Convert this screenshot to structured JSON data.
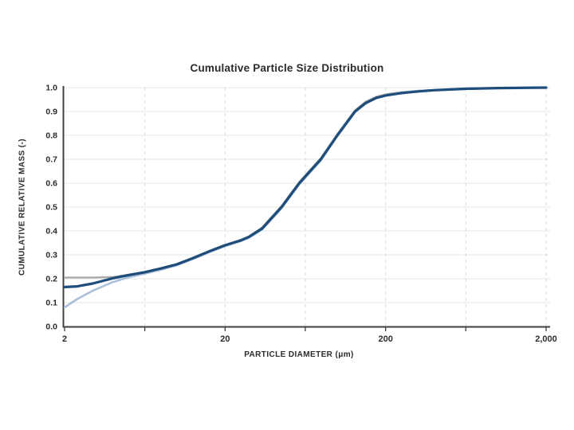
{
  "chart_data": {
    "type": "line",
    "title": "Cumulative Particle Size Distribution",
    "xlabel": "PARTICLE DIAMETER (μm)",
    "ylabel": "CUMULATIVE RELATIVE MASS (-)",
    "x_scale": "log",
    "xlim": [
      2,
      2000
    ],
    "ylim": [
      0.0,
      1.0
    ],
    "grid": {
      "horizontal": "solid",
      "vertical": "dashed"
    },
    "legend": "none",
    "x_ticks": [
      {
        "value": 2,
        "label": "2"
      },
      {
        "value": 20,
        "label": "20"
      },
      {
        "value": 200,
        "label": "200"
      },
      {
        "value": 2000,
        "label": "2,000"
      }
    ],
    "x_gridline_values": [
      6.32,
      20,
      63.2,
      200,
      632,
      2000
    ],
    "x_minor_tick_values": [
      2,
      6.32,
      20,
      63.2,
      200,
      632,
      2000
    ],
    "y_tick_labels": [
      "0.0",
      "0.1",
      "0.2",
      "0.3",
      "0.4",
      "0.5",
      "0.6",
      "0.7",
      "0.8",
      "0.9",
      "1.0"
    ],
    "colors": {
      "series_dark_blue": "#1e4d7b",
      "series_light_blue": "#aabfda",
      "series_gray": "#a8a8a8",
      "axis": "#404040",
      "grid_horizontal": "#e6e6e6",
      "grid_vertical": "#d9d9d9",
      "text": "#2b2b2b"
    },
    "series": [
      {
        "name": "series-gray",
        "color": "#a8a8a8",
        "stroke_width": 2.2,
        "points": [
          [
            2,
            0.205
          ],
          [
            3,
            0.205
          ],
          [
            4,
            0.207
          ],
          [
            5,
            0.217
          ],
          [
            6.3,
            0.229
          ],
          [
            8,
            0.245
          ],
          [
            10,
            0.262
          ],
          [
            12.5,
            0.287
          ],
          [
            16,
            0.317
          ],
          [
            20,
            0.342
          ],
          [
            25,
            0.363
          ],
          [
            28,
            0.377
          ],
          [
            34,
            0.414
          ],
          [
            45,
            0.505
          ],
          [
            58,
            0.605
          ],
          [
            79,
            0.705
          ],
          [
            100,
            0.805
          ],
          [
            129,
            0.905
          ],
          [
            150,
            0.941
          ],
          [
            175,
            0.962
          ],
          [
            200,
            0.972
          ],
          [
            250,
            0.981
          ],
          [
            320,
            0.987
          ],
          [
            630,
            0.996
          ],
          [
            1000,
            0.998
          ],
          [
            2000,
            1.0
          ]
        ]
      },
      {
        "name": "series-light-blue",
        "color": "#aabfda",
        "stroke_width": 2.6,
        "points": [
          [
            2,
            0.08
          ],
          [
            2.4,
            0.115
          ],
          [
            3,
            0.15
          ],
          [
            3.2,
            0.158
          ],
          [
            4,
            0.186
          ],
          [
            5,
            0.206
          ],
          [
            6.3,
            0.221
          ],
          [
            8,
            0.238
          ],
          [
            10,
            0.256
          ],
          [
            12.5,
            0.281
          ],
          [
            16,
            0.311
          ],
          [
            20,
            0.336
          ],
          [
            25,
            0.357
          ],
          [
            28,
            0.371
          ],
          [
            34,
            0.405
          ],
          [
            45,
            0.495
          ],
          [
            58,
            0.595
          ],
          [
            79,
            0.695
          ],
          [
            100,
            0.796
          ],
          [
            129,
            0.897
          ],
          [
            150,
            0.932
          ],
          [
            175,
            0.956
          ],
          [
            200,
            0.968
          ],
          [
            250,
            0.979
          ],
          [
            320,
            0.986
          ],
          [
            630,
            0.996
          ],
          [
            1000,
            0.998
          ],
          [
            2000,
            1.0
          ]
        ]
      },
      {
        "name": "series-dark-blue",
        "color": "#1e4d7b",
        "stroke_width": 3.2,
        "points": [
          [
            2,
            0.165
          ],
          [
            2.4,
            0.168
          ],
          [
            3,
            0.18
          ],
          [
            4,
            0.202
          ],
          [
            5,
            0.215
          ],
          [
            6.3,
            0.227
          ],
          [
            8,
            0.243
          ],
          [
            10,
            0.26
          ],
          [
            12.5,
            0.285
          ],
          [
            16,
            0.315
          ],
          [
            20,
            0.34
          ],
          [
            25,
            0.36
          ],
          [
            28,
            0.374
          ],
          [
            34,
            0.41
          ],
          [
            45,
            0.5
          ],
          [
            58,
            0.6
          ],
          [
            79,
            0.7
          ],
          [
            100,
            0.8
          ],
          [
            129,
            0.9
          ],
          [
            150,
            0.935
          ],
          [
            175,
            0.957
          ],
          [
            200,
            0.967
          ],
          [
            250,
            0.977
          ],
          [
            320,
            0.984
          ],
          [
            400,
            0.989
          ],
          [
            630,
            0.995
          ],
          [
            1000,
            0.998
          ],
          [
            2000,
            1.0
          ]
        ]
      }
    ]
  }
}
